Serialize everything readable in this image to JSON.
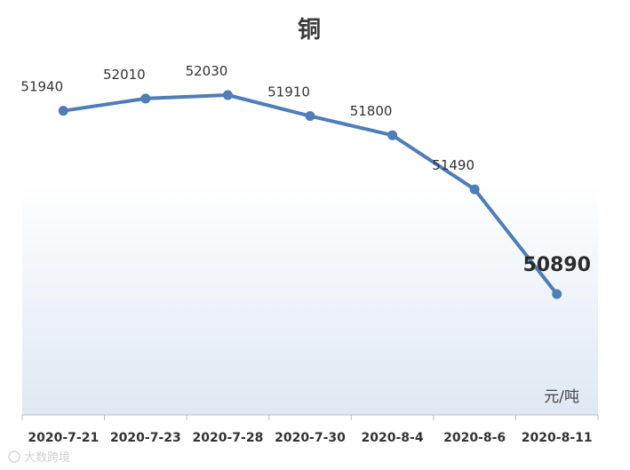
{
  "chart_data": {
    "type": "line",
    "title": "铜",
    "unit_label": "元/吨",
    "categories": [
      "2020-7-21",
      "2020-7-23",
      "2020-7-28",
      "2020-7-30",
      "2020-8-4",
      "2020-8-6",
      "2020-8-11"
    ],
    "series": [
      {
        "values": [
          51940,
          52010,
          52030,
          51910,
          51800,
          51490,
          50890
        ]
      }
    ],
    "data_labels": [
      "51940",
      "52010",
      "52030",
      "51910",
      "51800",
      "51490",
      "50890"
    ],
    "highlight_last": true,
    "grid": false,
    "line_color": "#4f7db9"
  },
  "watermark": "大数跨境"
}
